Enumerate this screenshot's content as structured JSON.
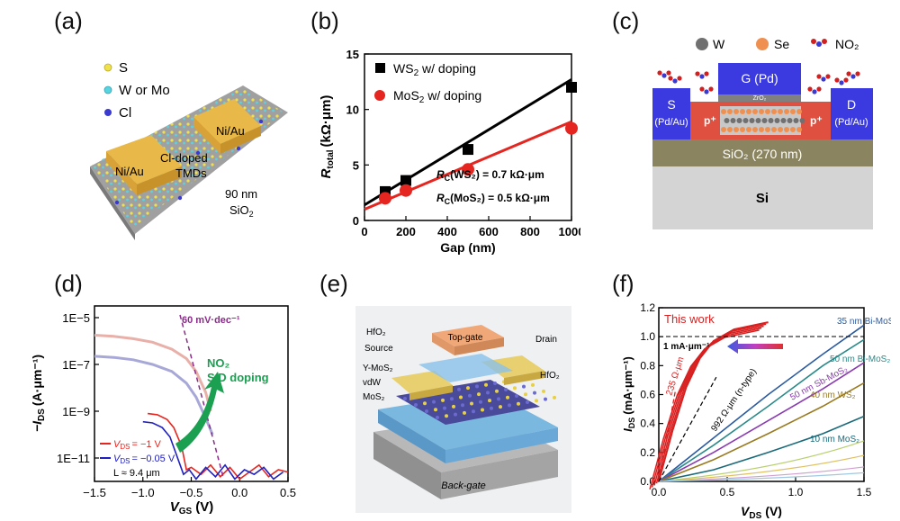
{
  "panels": {
    "a": {
      "label": "(a)",
      "legend": [
        "S",
        "W or Mo",
        "Cl"
      ],
      "left_contact": "Ni/Au",
      "right_contact": "Ni/Au",
      "channel_line1": "Cl-doped",
      "channel_line2": "TMDs",
      "oxide_line1": "90 nm",
      "oxide_line2": "SiO",
      "oxide_sub": "2",
      "colors": {
        "S": "#f0e04a",
        "W_Mo": "#56d4e0",
        "Cl": "#3a3ad0",
        "contact": "#e8b848"
      }
    },
    "b": {
      "label": "(b)",
      "ylabel_main": "R",
      "ylabel_sub": "total",
      "ylabel_unit": "(kΩ·μm)",
      "xlabel": "Gap (nm)",
      "legend_ws2_a": "WS",
      "legend_ws2_sub": "2",
      "legend_ws2_b": " w/ doping",
      "legend_mos2_a": "MoS",
      "legend_mos2_sub": "2",
      "legend_mos2_b": " w/ doping",
      "rc_ws2": "(WS₂) = 0.7 kΩ·μm",
      "rc_mos2": "(MoS₂) = 0.5 kΩ·μm",
      "rc_prefix": "R",
      "rc_sub": "C",
      "x_ticks": [
        "0",
        "200",
        "400",
        "600",
        "800",
        "1000"
      ],
      "y_ticks": [
        "0",
        "5",
        "10",
        "15"
      ]
    },
    "c": {
      "label": "(c)",
      "legend": [
        "W",
        "Se",
        "NO₂"
      ],
      "gate": "G (Pd)",
      "gate_oxide": "ZrO₂",
      "source": "S",
      "source_metal": "(Pd/Au)",
      "drain": "D",
      "drain_metal": "(Pd/Au)",
      "p_left": "p⁺",
      "p_right": "p⁺",
      "substrate_oxide": "SiO₂ (270 nm)",
      "substrate": "Si"
    },
    "d": {
      "label": "(d)",
      "ylabel": "−I",
      "ylabel_sub": "DS",
      "ylabel_unit": "(A·μm⁻¹)",
      "xlabel": "V",
      "xlabel_sub": "GS",
      "xlabel_unit": "(V)",
      "slope_label": "60 mV·dec⁻¹",
      "doping_line1": "NO₂",
      "doping_line2": "S/D doping",
      "vds1": "= −1 V",
      "vds2": "= −0.05 V",
      "length": "L ≈ 9.4 μm",
      "vds_prefix": "V",
      "vds_sub": "DS",
      "x_ticks": [
        "−1.5",
        "−1.0",
        "−0.5",
        "0.0",
        "0.5"
      ],
      "y_ticks": [
        "1E−5",
        "1E−7",
        "1E−9",
        "1E−11"
      ]
    },
    "e": {
      "label": "(e)",
      "top_gate": "Top-gate",
      "hfo2_top": "HfO₂",
      "source": "Source",
      "drain": "Drain",
      "y_mos2": "Y-MoS₂",
      "vdw": "vdW",
      "mos2": "MoS₂",
      "hfo2_right": "HfO₂",
      "back_gate": "Back-gate"
    },
    "f": {
      "label": "(f)",
      "this_work": "This work",
      "ref_line": "1 mA·μm⁻¹",
      "ylabel": "I",
      "ylabel_sub": "DS",
      "ylabel_unit": "(mA·μm⁻¹)",
      "xlabel": "V",
      "xlabel_sub": "DS",
      "xlabel_unit": "(V)",
      "res_235": "235 Ω·μm",
      "res_992": "992 Ω·μm (n-type)",
      "labels": [
        "35 nm Bi-MoS₂",
        "50 nm Bi-MoS₂",
        "50 nm Sb-MoS₂",
        "40 nm WS₂",
        "10 nm MoS₂"
      ],
      "x_ticks": [
        "0.0",
        "0.5",
        "1.0",
        "1.5"
      ],
      "y_ticks": [
        "0.0",
        "0.2",
        "0.4",
        "0.6",
        "0.8",
        "1.0",
        "1.2"
      ]
    }
  },
  "chart_data": [
    {
      "type": "scatter",
      "panel": "b",
      "xlim": [
        0,
        1000
      ],
      "ylim": [
        0,
        15
      ],
      "series": [
        {
          "name": "WS2 w/ doping",
          "color": "#000000",
          "marker": "square",
          "x": [
            100,
            200,
            500,
            1000
          ],
          "y": [
            2.6,
            3.6,
            6.4,
            12.0
          ],
          "fit": [
            [
              0,
              1.4
            ],
            [
              1050,
              12.7
            ]
          ]
        },
        {
          "name": "MoS2 w/ doping",
          "color": "#e52620",
          "marker": "circle",
          "x": [
            100,
            200,
            500,
            1000
          ],
          "y": [
            2.0,
            2.7,
            4.6,
            8.3
          ],
          "fit": [
            [
              0,
              1.0
            ],
            [
              1050,
              8.9
            ]
          ]
        }
      ]
    },
    {
      "type": "line",
      "panel": "d",
      "xlim": [
        -1.5,
        0.5
      ],
      "ylog": true,
      "ylim_exp": [
        -12,
        -4.5
      ],
      "series": [
        {
          "name": "VDS = -1 V (before)",
          "color": "#e8b0a8",
          "x": [
            -1.5,
            -1.3,
            -1.1,
            -0.9,
            -0.7,
            -0.55,
            -0.45,
            -0.35,
            -0.3
          ],
          "exp": [
            -5.75,
            -5.8,
            -5.9,
            -6.05,
            -6.35,
            -6.75,
            -7.3,
            -8.2,
            -9.0
          ]
        },
        {
          "name": "VDS = -0.05 V (before)",
          "color": "#a8a8d8",
          "x": [
            -1.5,
            -1.3,
            -1.1,
            -0.9,
            -0.7,
            -0.55,
            -0.45,
            -0.35,
            -0.28
          ],
          "exp": [
            -6.65,
            -6.7,
            -6.8,
            -7.0,
            -7.3,
            -7.8,
            -8.4,
            -9.3,
            -10.0
          ]
        },
        {
          "name": "VDS = -1 V",
          "color": "#e52620",
          "x": [
            -0.95,
            -0.85,
            -0.75,
            -0.68,
            -0.6,
            -0.55,
            -0.5,
            -0.4,
            -0.3,
            -0.2,
            -0.1,
            0.0,
            0.1,
            0.2,
            0.3,
            0.4,
            0.5
          ],
          "exp": [
            -9.1,
            -9.15,
            -9.35,
            -9.7,
            -10.5,
            -11.5,
            -11.4,
            -11.7,
            -11.3,
            -11.8,
            -11.4,
            -11.9,
            -11.6,
            -11.3,
            -11.8,
            -11.5,
            -11.6
          ]
        },
        {
          "name": "VDS = -0.05 V",
          "color": "#2020c0",
          "x": [
            -1.0,
            -0.9,
            -0.8,
            -0.72,
            -0.65,
            -0.58,
            -0.52,
            -0.45,
            -0.35,
            -0.25,
            -0.15,
            -0.05,
            0.05,
            0.15,
            0.25,
            0.35,
            0.45
          ],
          "exp": [
            -9.45,
            -9.5,
            -9.7,
            -10.1,
            -10.9,
            -11.7,
            -11.5,
            -11.9,
            -11.4,
            -11.8,
            -11.3,
            -11.9,
            -11.5,
            -11.7,
            -11.4,
            -11.9,
            -11.6
          ]
        }
      ]
    },
    {
      "type": "line",
      "panel": "f",
      "xlim": [
        0,
        1.5
      ],
      "ylim": [
        0,
        1.2
      ],
      "series": [
        {
          "name": "35 nm Bi-MoS2",
          "color": "#2a5aa0",
          "x": [
            0,
            0.4,
            0.8,
            1.2,
            1.5
          ],
          "y": [
            0,
            0.3,
            0.6,
            0.88,
            1.08
          ]
        },
        {
          "name": "50 nm Bi-MoS2",
          "color": "#2a8a8a",
          "x": [
            0,
            0.4,
            0.8,
            1.2,
            1.5
          ],
          "y": [
            0,
            0.25,
            0.52,
            0.8,
            0.98
          ]
        },
        {
          "name": "50 nm Sb-MoS2",
          "color": "#8a3ab0",
          "x": [
            0,
            0.4,
            0.8,
            1.2,
            1.5
          ],
          "y": [
            0,
            0.2,
            0.42,
            0.64,
            0.82
          ]
        },
        {
          "name": "40 nm WS2",
          "color": "#9a7a20",
          "x": [
            0,
            0.4,
            0.8,
            1.2,
            1.5
          ],
          "y": [
            0,
            0.15,
            0.33,
            0.52,
            0.68
          ]
        },
        {
          "name": "10 nm MoS2",
          "color": "#1a6a7a",
          "x": [
            0,
            0.4,
            0.8,
            1.2,
            1.5
          ],
          "y": [
            0,
            0.08,
            0.2,
            0.33,
            0.45
          ]
        },
        {
          "name": "This work",
          "color": "#d82020",
          "x": [
            0,
            0.1,
            0.2,
            0.3,
            0.4,
            0.55,
            0.8
          ],
          "y": [
            0,
            0.35,
            0.65,
            0.85,
            0.97,
            1.05,
            1.1
          ]
        }
      ]
    }
  ]
}
